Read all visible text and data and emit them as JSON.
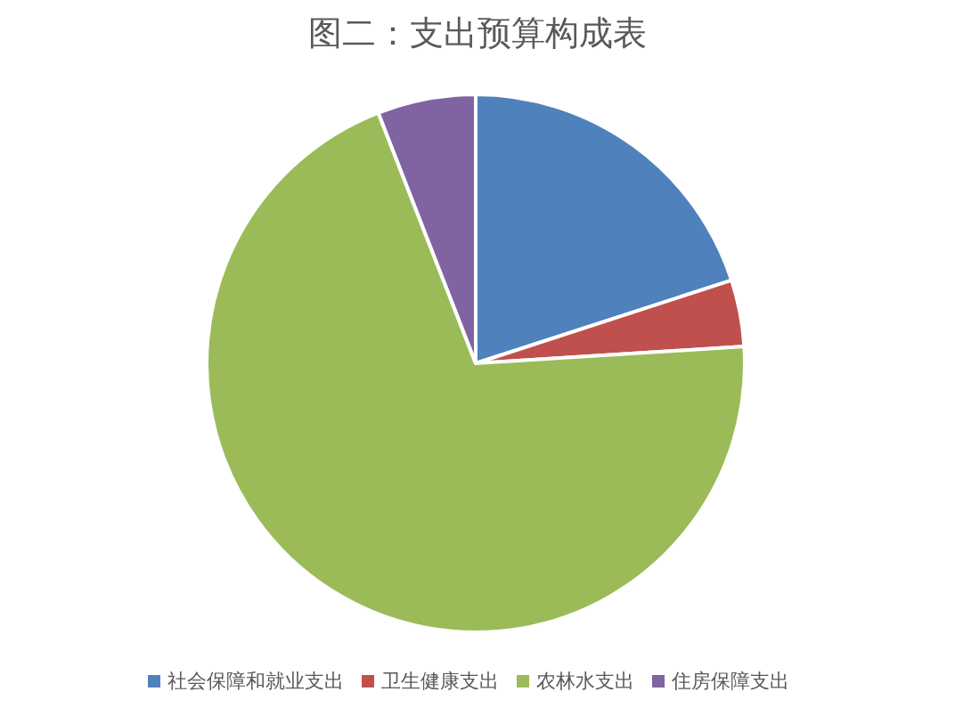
{
  "chart_data": {
    "type": "pie",
    "title": "图二：支出预算构成表",
    "categories": [
      "社会保障和就业支出",
      "卫生健康支出",
      "农林水支出",
      "住房保障支出"
    ],
    "values": [
      20,
      4,
      70.1,
      5.9
    ],
    "colors": [
      "#4f81bd",
      "#c0504d",
      "#9bbb59",
      "#8064a2"
    ],
    "legend": "bottom"
  }
}
